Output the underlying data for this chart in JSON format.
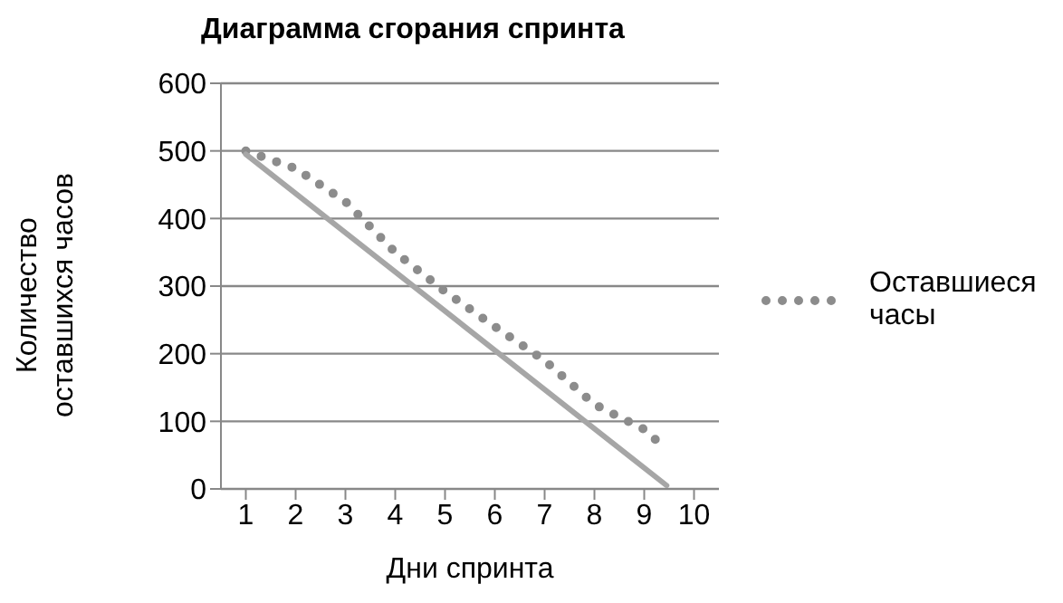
{
  "chart_data": {
    "type": "line",
    "title": "Диаграмма сгорания спринта",
    "xlabel": "Дни спринта",
    "ylabel": "Количество оставшихся часов",
    "series": [
      {
        "name": "Оставшиеся часы",
        "color": "#8c8c8c",
        "line_style": "dotted",
        "x": [
          1,
          2,
          3,
          4,
          5,
          6,
          7,
          8,
          9,
          9.45
        ],
        "values": [
          500,
          474,
          425,
          350,
          292,
          240,
          190,
          125,
          88,
          58
        ]
      },
      {
        "color": "#a6a6a6",
        "line_style": "solid",
        "x": [
          1,
          9.45
        ],
        "values": [
          495,
          5
        ]
      }
    ],
    "xlim": [
      0.5,
      10.5
    ],
    "xticks": [
      1,
      2,
      3,
      4,
      5,
      6,
      7,
      8,
      9,
      10
    ],
    "ylim": [
      0,
      600
    ],
    "yticks": [
      0,
      100,
      200,
      300,
      400,
      500,
      600
    ],
    "grid": "y",
    "legend": "right"
  }
}
